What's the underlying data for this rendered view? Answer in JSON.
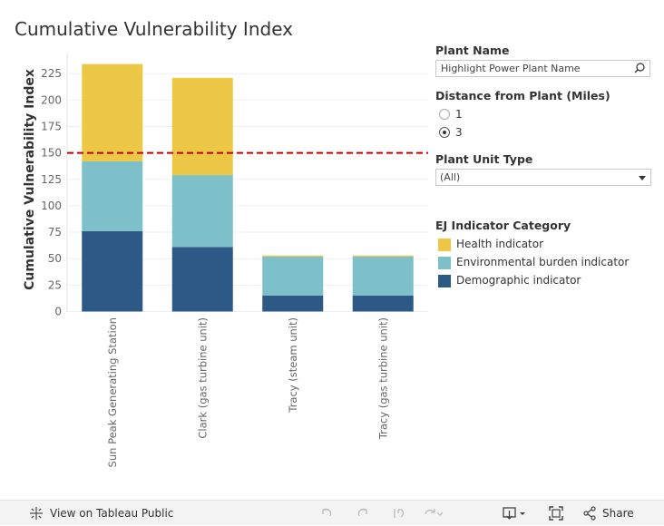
{
  "chart_data": {
    "type": "bar",
    "stacked": true,
    "title": "Cumulative Vulnerability Index",
    "ylabel": "Cumulative Vulnerability Index",
    "ylim": [
      0,
      240
    ],
    "yticks": [
      0,
      25,
      50,
      75,
      100,
      125,
      150,
      175,
      200,
      225
    ],
    "categories": [
      "Sun Peak Generating Station",
      "Clark (gas turbine unit)",
      "Tracy (steam unit)",
      "Tracy (gas turbine unit)"
    ],
    "series": [
      {
        "name": "Demographic indicator",
        "color": "#2c5985",
        "values": [
          76,
          61,
          15,
          15
        ]
      },
      {
        "name": "Environmental burden indicator",
        "color": "#7ec0c9",
        "values": [
          66,
          68,
          37,
          37
        ]
      },
      {
        "name": "Health indicator",
        "color": "#ecc846",
        "values": [
          92,
          92,
          1,
          1
        ]
      }
    ],
    "reference_line": {
      "value": 150,
      "color": "#c00000",
      "style": "dashed"
    },
    "grid": true
  },
  "filters": {
    "plant_name": {
      "label": "Plant Name",
      "placeholder": "Highlight Power Plant Name",
      "icon": "search-icon"
    },
    "distance": {
      "label": "Distance from Plant (Miles)",
      "options": [
        "1",
        "3"
      ],
      "selected": "3"
    },
    "unit_type": {
      "label": "Plant Unit Type",
      "value": "(All)"
    }
  },
  "legend": {
    "title": "EJ Indicator Category",
    "items": [
      {
        "label": "Health indicator",
        "color": "#ecc846"
      },
      {
        "label": "Environmental burden indicator",
        "color": "#7ec0c9"
      },
      {
        "label": "Demographic indicator",
        "color": "#2c5985"
      }
    ]
  },
  "footer": {
    "view_label": "View on Tableau Public",
    "share_label": "Share"
  }
}
